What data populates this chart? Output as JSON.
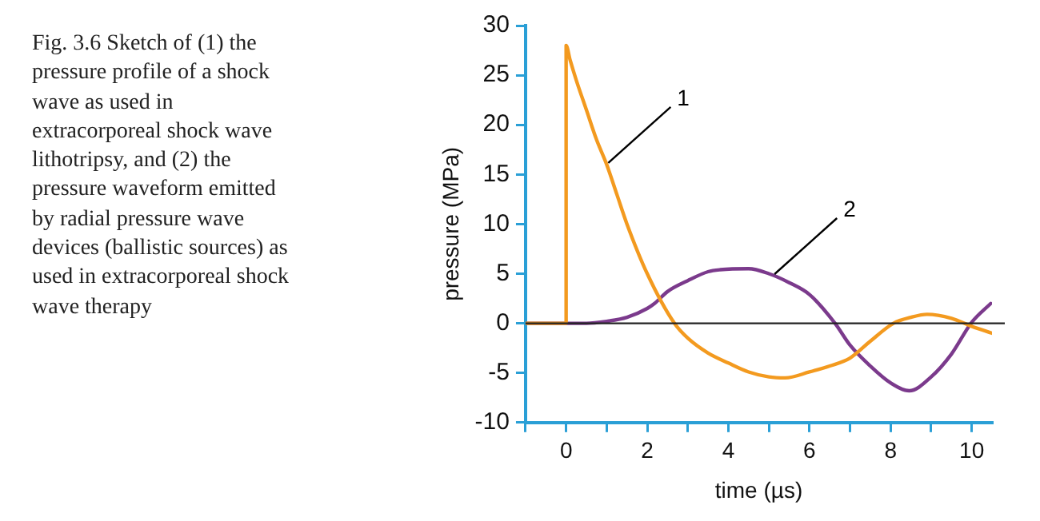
{
  "chart_data": {
    "type": "line",
    "xlabel": "time (µs)",
    "ylabel": "pressure (MPa)",
    "xlim": [
      -1,
      10.5
    ],
    "ylim": [
      -10,
      30
    ],
    "xticks": [
      {
        "value": -1,
        "label": null
      },
      0,
      {
        "value": 1,
        "label": null
      },
      2,
      {
        "value": 3,
        "label": null
      },
      4,
      {
        "value": 5,
        "label": null
      },
      6,
      {
        "value": 7,
        "label": null
      },
      8,
      {
        "value": 9,
        "label": null
      },
      10
    ],
    "yticks": [
      -10,
      -5,
      0,
      5,
      10,
      15,
      20,
      25,
      30
    ],
    "grid": false,
    "legend": false,
    "marker": "none",
    "line_style": "solid",
    "ref_lines": [
      {
        "axis": "y",
        "value": 0,
        "color": "#222222"
      }
    ],
    "series": [
      {
        "color": "#f39a1f",
        "x": [
          -1,
          0,
          0,
          0.1,
          0.25,
          0.5,
          0.75,
          1,
          1.25,
          1.5,
          2,
          2.67,
          3,
          3.5,
          4,
          4.5,
          5,
          5.4,
          6,
          6.5,
          7,
          7.5,
          8.07,
          8.5,
          8.9,
          9.5,
          10,
          10.5
        ],
        "values": [
          0,
          0,
          28,
          26.5,
          24.5,
          21.5,
          18.5,
          16,
          13,
          10,
          5,
          0,
          -1.5,
          -3,
          -4,
          -4.9,
          -5.4,
          -5.5,
          -4.9,
          -4.3,
          -3.5,
          -1.8,
          0,
          0.6,
          0.9,
          0.5,
          -0.3,
          -1
        ]
      },
      {
        "color": "#7b3a8c",
        "x": [
          -1,
          0,
          0.5,
          1,
          1.5,
          2,
          2.18,
          2.5,
          3,
          3.5,
          3.8,
          4.5,
          5,
          5.5,
          6,
          6.63,
          7,
          7.5,
          8,
          8.46,
          9,
          9.5,
          10,
          10.47
        ],
        "values": [
          0,
          0,
          0,
          0.2,
          0.6,
          1.5,
          2,
          3.2,
          4.3,
          5.2,
          5.4,
          5.5,
          5,
          4.1,
          2.9,
          0,
          -2.2,
          -4.3,
          -6,
          -6.8,
          -5.4,
          -3.1,
          0.1,
          2
        ]
      }
    ],
    "annotations": [
      "Fig. 3.6 Sketch of (1) the pressure profile of a shock wave as used in extracorporeal shock wave lithotripsy, and (2) the pressure waveform emitted by radial pressure wave devices (ballistic sources) as used in extracorporeal shock wave therapy",
      {
        "text": "1",
        "x": 1,
        "y": 16
      },
      {
        "text": "2",
        "x": 5.1,
        "y": 4.8
      }
    ]
  }
}
